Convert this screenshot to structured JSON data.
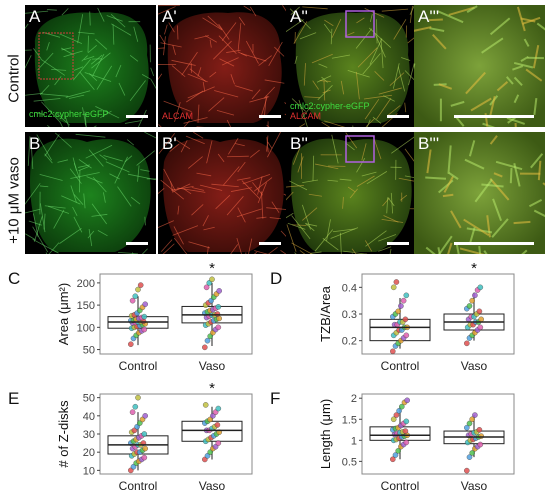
{
  "rows": {
    "control_label": "Control",
    "vaso_label": "+10 μM vaso"
  },
  "panels": [
    {
      "letter": "A",
      "type": "green",
      "row": 0,
      "col": 0,
      "channel_green": "cmlc2:cypher-eGFP",
      "channel_red": "",
      "roi": "red",
      "scalebar": true
    },
    {
      "letter": "A'",
      "type": "red",
      "row": 0,
      "col": 1,
      "channel_green": "",
      "channel_red": "ALCAM",
      "roi": "",
      "scalebar": true
    },
    {
      "letter": "A''",
      "type": "merge",
      "row": 0,
      "col": 2,
      "channel_green": "cmlc2:cypher-eGFP",
      "channel_red": "ALCAM",
      "roi": "purple",
      "scalebar": true
    },
    {
      "letter": "A'''",
      "type": "zoom",
      "row": 0,
      "col": 3,
      "channel_green": "",
      "channel_red": "",
      "roi": "",
      "scalebar": true
    },
    {
      "letter": "B",
      "type": "green",
      "row": 1,
      "col": 0,
      "channel_green": "",
      "channel_red": "",
      "roi": "",
      "scalebar": true
    },
    {
      "letter": "B'",
      "type": "red",
      "row": 1,
      "col": 1,
      "channel_green": "",
      "channel_red": "",
      "roi": "",
      "scalebar": true
    },
    {
      "letter": "B''",
      "type": "merge",
      "row": 1,
      "col": 2,
      "channel_green": "",
      "channel_red": "",
      "roi": "purple",
      "scalebar": true
    },
    {
      "letter": "B'''",
      "type": "zoom",
      "row": 1,
      "col": 3,
      "channel_green": "",
      "channel_red": "",
      "roi": "",
      "scalebar": true
    }
  ],
  "colors": {
    "green_channel": "#2fae2f",
    "red_channel": "#c8281e",
    "roi_red": "#d23c3c",
    "roi_purple": "#b060e0",
    "box_stroke": "#222222"
  },
  "chart_data": [
    {
      "letter": "C",
      "type": "box",
      "categories": [
        "Control",
        "Vaso"
      ],
      "ylabel": "Area (μm²)",
      "yticks": [
        50,
        100,
        150,
        200
      ],
      "ylim": [
        40,
        220
      ],
      "boxes": [
        {
          "q1": 98,
          "median": 112,
          "q3": 124,
          "whisker_low": 60,
          "whisker_high": 170,
          "points": [
            62,
            75,
            82,
            88,
            92,
            95,
            98,
            100,
            102,
            104,
            106,
            108,
            110,
            111,
            112,
            113,
            114,
            115,
            116,
            118,
            120,
            122,
            124,
            126,
            128,
            132,
            138,
            145,
            152,
            160,
            170,
            185,
            195
          ]
        },
        {
          "q1": 110,
          "median": 128,
          "q3": 147,
          "whisker_low": 58,
          "whisker_high": 200,
          "points": [
            55,
            70,
            80,
            88,
            95,
            100,
            105,
            108,
            112,
            115,
            118,
            120,
            122,
            125,
            127,
            128,
            130,
            132,
            135,
            138,
            140,
            143,
            146,
            150,
            155,
            160,
            168,
            175,
            182,
            190,
            200,
            208
          ]
        }
      ],
      "significance": [
        "",
        "*"
      ]
    },
    {
      "letter": "D",
      "type": "box",
      "categories": [
        "Control",
        "Vaso"
      ],
      "ylabel": "TZB/Area",
      "yticks": [
        0.2,
        0.3,
        0.4
      ],
      "ylim": [
        0.15,
        0.45
      ],
      "boxes": [
        {
          "q1": 0.2,
          "median": 0.25,
          "q3": 0.28,
          "whisker_low": 0.17,
          "whisker_high": 0.36,
          "points": [
            0.16,
            0.18,
            0.19,
            0.2,
            0.21,
            0.22,
            0.22,
            0.23,
            0.24,
            0.24,
            0.25,
            0.25,
            0.26,
            0.26,
            0.27,
            0.27,
            0.28,
            0.29,
            0.3,
            0.31,
            0.33,
            0.35,
            0.37,
            0.4,
            0.42
          ]
        },
        {
          "q1": 0.24,
          "median": 0.27,
          "q3": 0.3,
          "whisker_low": 0.2,
          "whisker_high": 0.38,
          "points": [
            0.19,
            0.21,
            0.22,
            0.23,
            0.24,
            0.25,
            0.25,
            0.26,
            0.26,
            0.27,
            0.27,
            0.28,
            0.28,
            0.29,
            0.29,
            0.3,
            0.31,
            0.32,
            0.33,
            0.35,
            0.37,
            0.39,
            0.4
          ]
        }
      ],
      "significance": [
        "",
        "*"
      ]
    },
    {
      "letter": "E",
      "type": "box",
      "categories": [
        "Control",
        "Vaso"
      ],
      "ylabel": "# of Z-disks",
      "yticks": [
        10,
        20,
        30,
        40,
        50
      ],
      "ylim": [
        8,
        52
      ],
      "boxes": [
        {
          "q1": 19,
          "median": 24,
          "q3": 29,
          "whisker_low": 10,
          "whisker_high": 42,
          "points": [
            10,
            12,
            14,
            15,
            16,
            17,
            18,
            19,
            20,
            20,
            21,
            22,
            22,
            23,
            24,
            24,
            25,
            25,
            26,
            27,
            28,
            29,
            30,
            31,
            32,
            34,
            36,
            38,
            40,
            42,
            45,
            50
          ]
        },
        {
          "q1": 26,
          "median": 32,
          "q3": 37,
          "whisker_low": 16,
          "whisker_high": 45,
          "points": [
            16,
            18,
            20,
            22,
            23,
            25,
            26,
            27,
            28,
            29,
            30,
            31,
            32,
            32,
            33,
            34,
            35,
            36,
            37,
            38,
            40,
            42,
            44,
            46
          ]
        }
      ],
      "significance": [
        "",
        "*"
      ]
    },
    {
      "letter": "F",
      "type": "box",
      "categories": [
        "Control",
        "Vaso"
      ],
      "ylabel": "Length (μm)",
      "yticks": [
        0.5,
        1.0,
        1.5,
        2.0
      ],
      "ylim": [
        0.2,
        2.1
      ],
      "boxes": [
        {
          "q1": 1.0,
          "median": 1.12,
          "q3": 1.32,
          "whisker_low": 0.55,
          "whisker_high": 1.8,
          "points": [
            0.55,
            0.65,
            0.75,
            0.85,
            0.9,
            0.95,
            1.0,
            1.02,
            1.05,
            1.08,
            1.1,
            1.12,
            1.14,
            1.16,
            1.18,
            1.2,
            1.22,
            1.25,
            1.28,
            1.3,
            1.35,
            1.4,
            1.45,
            1.5,
            1.6,
            1.7,
            1.8,
            1.9,
            1.95
          ]
        },
        {
          "q1": 0.92,
          "median": 1.08,
          "q3": 1.22,
          "whisker_low": 0.6,
          "whisker_high": 1.6,
          "points": [
            0.28,
            0.6,
            0.7,
            0.8,
            0.85,
            0.9,
            0.95,
            1.0,
            1.02,
            1.05,
            1.08,
            1.1,
            1.12,
            1.15,
            1.18,
            1.2,
            1.25,
            1.3,
            1.4,
            1.5,
            1.6
          ]
        }
      ],
      "significance": [
        "",
        ""
      ]
    }
  ]
}
